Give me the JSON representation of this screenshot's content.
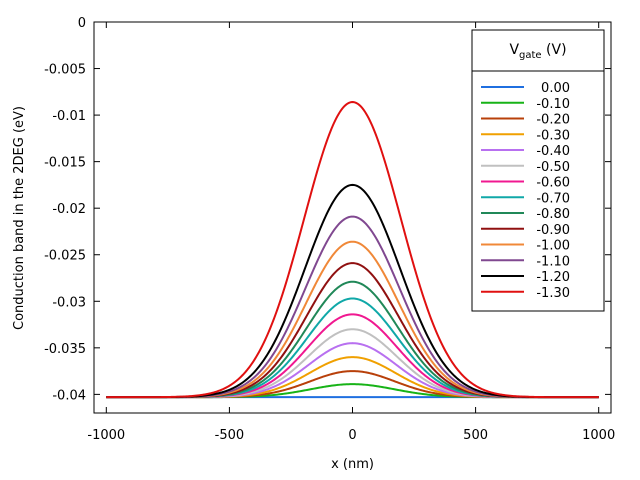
{
  "chart_data": {
    "type": "line",
    "title": "",
    "xlabel": "x (nm)",
    "ylabel": "Conduction band in the 2DEG (eV)",
    "xlim": [
      -1050,
      1050
    ],
    "ylim": [
      -0.042,
      0
    ],
    "x_ticks": [
      -1000,
      -500,
      0,
      500,
      1000
    ],
    "x_tick_labels": [
      "-1000",
      "-500",
      "0",
      "500",
      "1000"
    ],
    "y_ticks": [
      0,
      -0.005,
      -0.01,
      -0.015,
      -0.02,
      -0.025,
      -0.03,
      -0.035,
      -0.04
    ],
    "y_tick_labels": [
      "0",
      "-0.005",
      "-0.01",
      "-0.015",
      "-0.02",
      "-0.025",
      "-0.03",
      "-0.035",
      "-0.04"
    ],
    "grid": false,
    "legend": {
      "position": "top-right",
      "title_main": "V",
      "title_sub": "gate",
      "title_unit": " (V)"
    },
    "x_range": [
      -1000,
      1000
    ],
    "baseline": -0.0403,
    "series": [
      {
        "name": "0.00",
        "color": "#1f6fe0",
        "peak": -0.0403,
        "width_nm": 170
      },
      {
        "name": "-0.10",
        "color": "#17b317",
        "peak": -0.0389,
        "width_nm": 170
      },
      {
        "name": "-0.20",
        "color": "#b8400a",
        "peak": -0.0375,
        "width_nm": 172
      },
      {
        "name": "-0.30",
        "color": "#f0a000",
        "peak": -0.036,
        "width_nm": 174
      },
      {
        "name": "-0.40",
        "color": "#b870f0",
        "peak": -0.0345,
        "width_nm": 176
      },
      {
        "name": "-0.50",
        "color": "#c0c0c0",
        "peak": -0.033,
        "width_nm": 178
      },
      {
        "name": "-0.60",
        "color": "#f01890",
        "peak": -0.0314,
        "width_nm": 180
      },
      {
        "name": "-0.70",
        "color": "#10a8a8",
        "peak": -0.0297,
        "width_nm": 182
      },
      {
        "name": "-0.80",
        "color": "#208858",
        "peak": -0.0279,
        "width_nm": 184
      },
      {
        "name": "-0.90",
        "color": "#901010",
        "peak": -0.0259,
        "width_nm": 186
      },
      {
        "name": "-1.00",
        "color": "#f08838",
        "peak": -0.0236,
        "width_nm": 188
      },
      {
        "name": "-1.10",
        "color": "#804890",
        "peak": -0.0209,
        "width_nm": 190
      },
      {
        "name": "-1.20",
        "color": "#000000",
        "peak": -0.0175,
        "width_nm": 193
      },
      {
        "name": "-1.30",
        "color": "#e01010",
        "peak": -0.0086,
        "width_nm": 196
      }
    ]
  }
}
